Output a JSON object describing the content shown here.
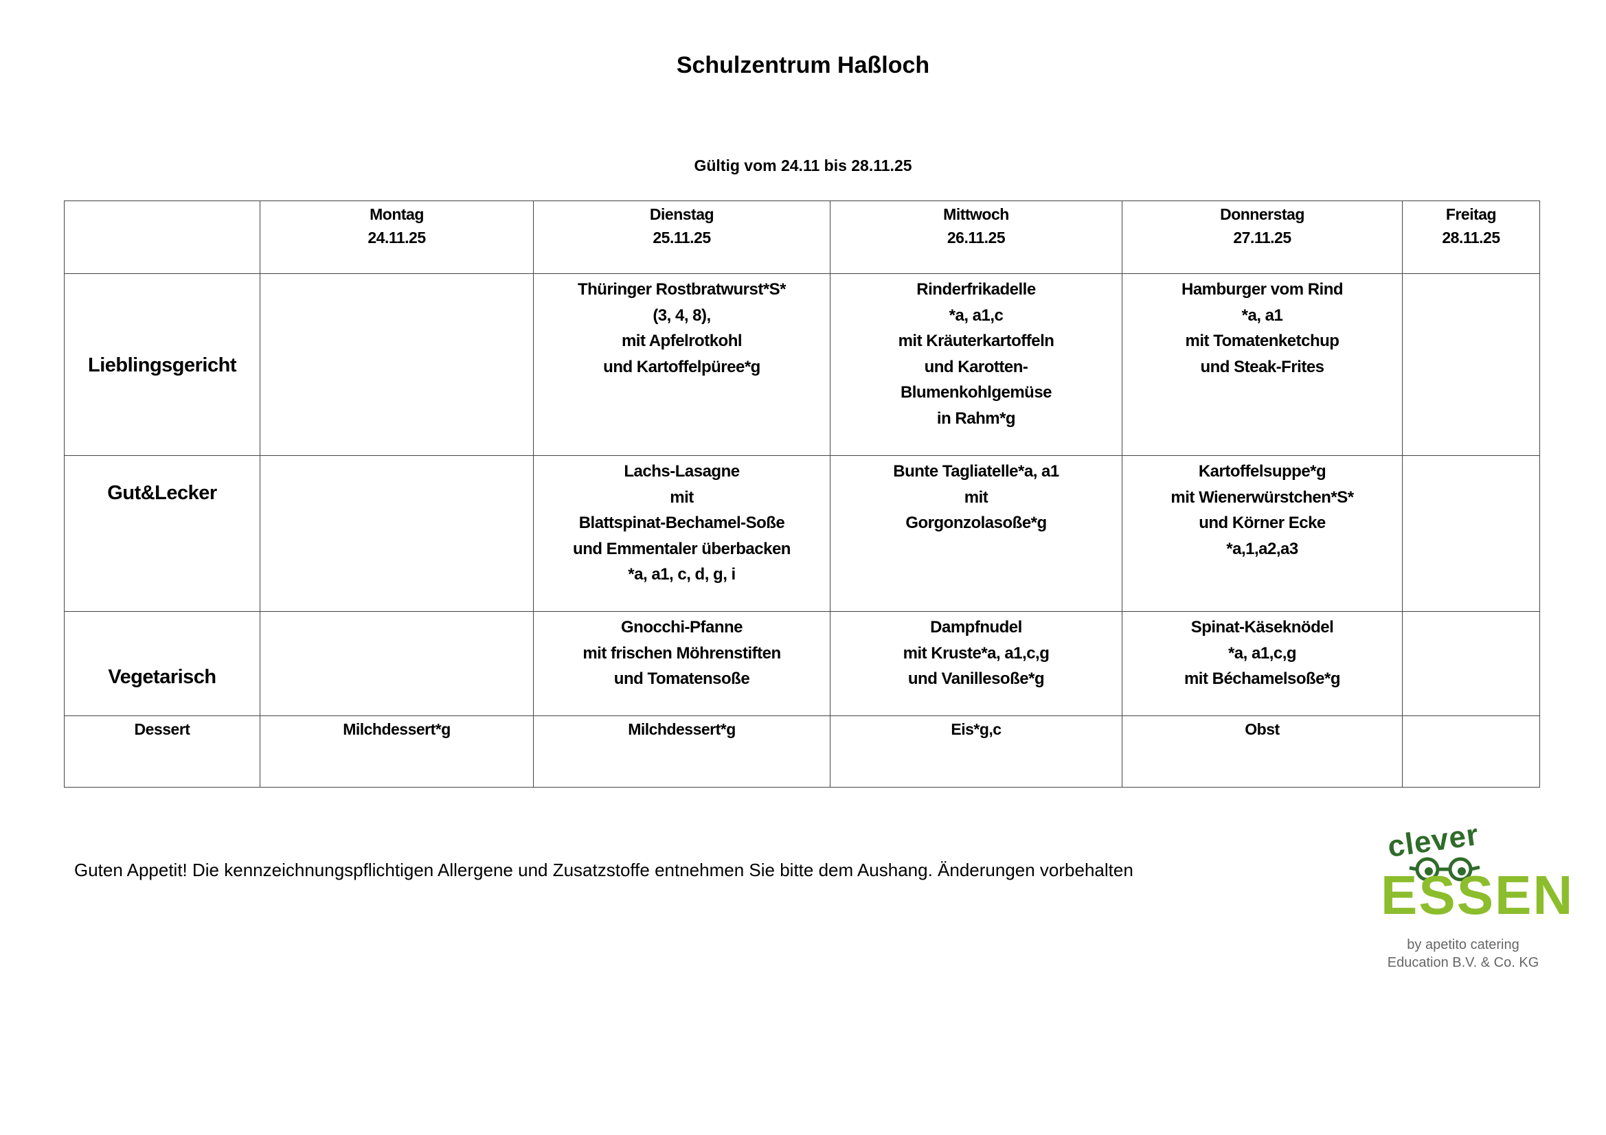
{
  "title": "Schulzentrum Haßloch",
  "validity": "Gültig vom 24.11 bis 28.11.25",
  "days": [
    {
      "name": "Montag",
      "date": "24.11.25"
    },
    {
      "name": "Dienstag",
      "date": "25.11.25"
    },
    {
      "name": "Mittwoch",
      "date": "26.11.25"
    },
    {
      "name": "Donnerstag",
      "date": "27.11.25"
    },
    {
      "name": "Freitag",
      "date": "28.11.25"
    }
  ],
  "rows": [
    {
      "label": "Lieblingsgericht",
      "cells": [
        [],
        [
          "Thüringer Rostbratwurst*S*",
          "(3, 4, 8),",
          "mit Apfelrotkohl",
          "und Kartoffelpüree*g"
        ],
        [
          "Rinderfrikadelle",
          "*a, a1,c",
          "mit Kräuterkartoffeln",
          "und Karotten-",
          "Blumenkohlgemüse",
          "in Rahm*g"
        ],
        [
          "Hamburger vom Rind",
          "*a, a1",
          "mit Tomatenketchup",
          "und Steak-Frites"
        ],
        []
      ]
    },
    {
      "label": "Gut&Lecker",
      "cells": [
        [],
        [
          "Lachs-Lasagne",
          "mit",
          "Blattspinat-Bechamel-Soße",
          "und Emmentaler überbacken",
          "*a, a1, c, d, g, i"
        ],
        [
          "Bunte Tagliatelle*a, a1",
          "mit",
          "Gorgonzolasoße*g"
        ],
        [
          "Kartoffelsuppe*g",
          "mit Wienerwürstchen*S*",
          "und Körner Ecke",
          "*a,1,a2,a3"
        ],
        []
      ]
    },
    {
      "label": "Vegetarisch",
      "cells": [
        [],
        [
          "Gnocchi-Pfanne",
          "mit frischen Möhrenstiften",
          "und Tomatensoße"
        ],
        [
          "Dampfnudel",
          "mit Kruste*a, a1,c,g",
          "und Vanillesoße*g"
        ],
        [
          "Spinat-Käseknödel",
          "*a, a1,c,g",
          "mit Béchamelsoße*g"
        ],
        []
      ]
    }
  ],
  "dessert": {
    "label": "Dessert",
    "cells": [
      "Milchdessert*g",
      "Milchdessert*g",
      "Eis*g,c",
      "Obst",
      ""
    ]
  },
  "footer": "Guten Appetit! Die kennzeichnungspflichtigen Allergene und Zusatzstoffe entnehmen Sie bitte dem Aushang. Änderungen vorbehalten",
  "logo": {
    "word1": "clever",
    "word2": "ESSEN",
    "byline1": "by apetito catering",
    "byline2": "Education B.V. & Co. KG",
    "colors": {
      "dark": "#2f6b2a",
      "light": "#8cbd2c"
    }
  }
}
